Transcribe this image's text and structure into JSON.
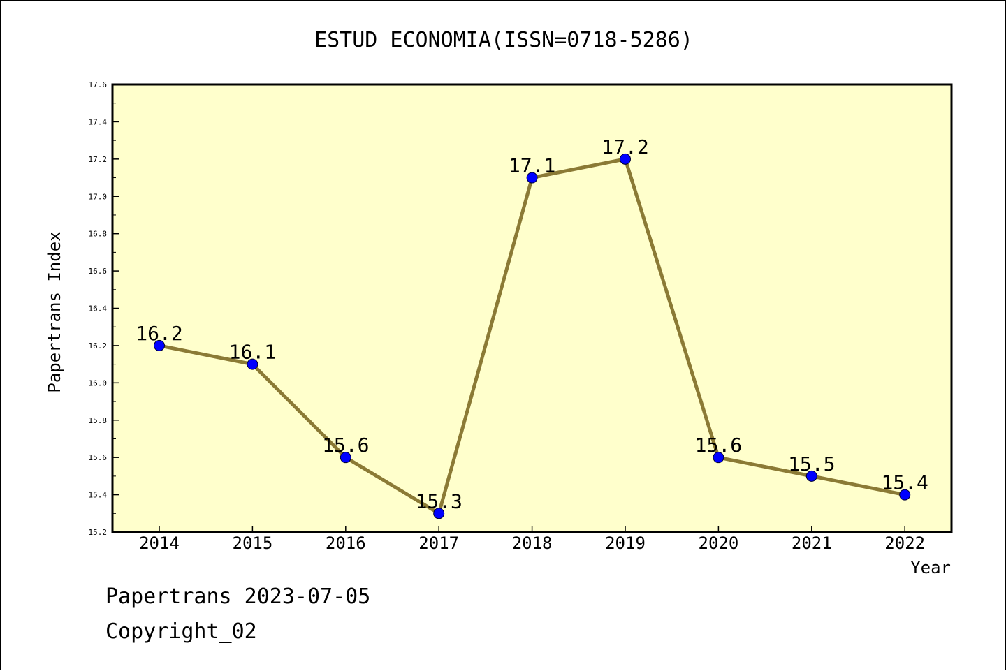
{
  "chart_data": {
    "type": "line",
    "title": "ESTUD ECONOMIA(ISSN=0718-5286)",
    "xlabel": "Year",
    "ylabel": "Papertrans Index",
    "categories": [
      "2014",
      "2015",
      "2016",
      "2017",
      "2018",
      "2019",
      "2020",
      "2021",
      "2022"
    ],
    "values": [
      16.2,
      16.1,
      15.6,
      15.3,
      17.1,
      17.2,
      15.6,
      15.5,
      15.4
    ],
    "data_labels": [
      "16.2",
      "16.1",
      "15.6",
      "15.3",
      "17.1",
      "17.2",
      "15.6",
      "15.5",
      "15.4"
    ],
    "ylim": [
      15.2,
      17.6
    ],
    "yticks": [
      "15.2",
      "15.4",
      "15.6",
      "15.8",
      "16.0",
      "16.2",
      "16.4",
      "16.6",
      "16.8",
      "17.0",
      "17.2",
      "17.4",
      "17.6"
    ],
    "grid": false,
    "legend": "none",
    "colors": {
      "plot_background": "#ffffcc",
      "line": "#8b7a35",
      "marker": "#0000ff"
    }
  },
  "footer": {
    "date_line": "Papertrans 2023-07-05",
    "copyright": "Copyright_02"
  }
}
